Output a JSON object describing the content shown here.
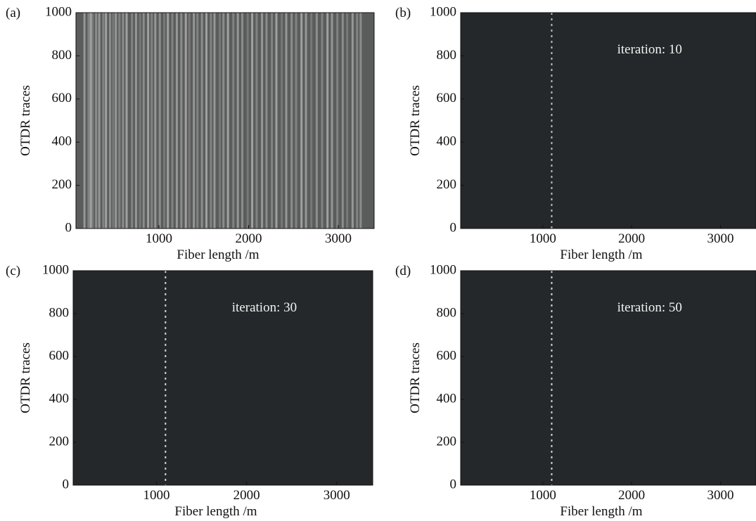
{
  "chart_data": [
    {
      "type": "heatmap",
      "panel_label": "(a)",
      "xlabel": "Fiber length /m",
      "ylabel": "OTDR traces",
      "xlim": [
        75,
        3400
      ],
      "ylim": [
        0,
        1000
      ],
      "xticks": [
        1000,
        2000,
        3000
      ],
      "yticks": [
        0,
        200,
        400,
        600,
        800,
        1000
      ],
      "background": "#5a5c5b",
      "stripe_color": "#ffffff",
      "x": [
        170,
        215,
        240,
        262,
        300,
        335,
        380,
        410,
        455,
        490,
        520,
        560,
        600,
        640,
        700,
        745,
        790,
        830,
        880,
        920,
        960,
        1010,
        1060,
        1100,
        1150,
        1200,
        1250,
        1300,
        1340,
        1390,
        1430,
        1480,
        1530,
        1580,
        1620,
        1680,
        1720,
        1770,
        1830,
        1880,
        1930,
        1990,
        2040,
        2090,
        2150,
        2200,
        2260,
        2310,
        2370,
        2420,
        2480,
        2530,
        2590,
        2640,
        2700,
        2760,
        2820,
        2880,
        2930,
        2990,
        3050,
        3100,
        3160,
        3210,
        3250
      ],
      "values": [
        0.6,
        0.4,
        0.7,
        0.3,
        0.5,
        0.6,
        0.4,
        0.7,
        0.5,
        0.3,
        0.6,
        0.4,
        0.5,
        0.7,
        0.4,
        0.6,
        0.3,
        0.5,
        0.7,
        0.4,
        0.6,
        0.5,
        0.3,
        0.7,
        0.4,
        0.6,
        0.5,
        0.7,
        0.3,
        0.6,
        0.4,
        0.5,
        0.7,
        0.4,
        0.6,
        0.3,
        0.5,
        0.7,
        0.4,
        0.6,
        0.5,
        0.3,
        0.7,
        0.4,
        0.6,
        0.5,
        0.4,
        0.7,
        0.3,
        0.6,
        0.5,
        0.4,
        0.7,
        0.6,
        0.3,
        0.5,
        0.4,
        0.7,
        0.6,
        0.4,
        0.5,
        0.3,
        0.6,
        0.4,
        0.5
      ]
    },
    {
      "type": "heatmap",
      "panel_label": "(b)",
      "xlabel": "Fiber length /m",
      "ylabel": "OTDR traces",
      "annotation": "iteration: 10",
      "xlim": [
        75,
        3400
      ],
      "ylim": [
        0,
        1000
      ],
      "xticks": [
        1000,
        2000,
        3000
      ],
      "yticks": [
        0,
        200,
        400,
        600,
        800,
        1000
      ],
      "background": "#25282a",
      "stripe_color": "#ffffff",
      "x": [
        1100
      ],
      "values": [
        0.7
      ]
    },
    {
      "type": "heatmap",
      "panel_label": "(c)",
      "xlabel": "Fiber length /m",
      "ylabel": "OTDR traces",
      "annotation": "iteration: 30",
      "xlim": [
        75,
        3400
      ],
      "ylim": [
        0,
        1000
      ],
      "xticks": [
        1000,
        2000,
        3000
      ],
      "yticks": [
        0,
        200,
        400,
        600,
        800,
        1000
      ],
      "background": "#25282a",
      "stripe_color": "#ffffff",
      "x": [
        1100
      ],
      "values": [
        0.8
      ]
    },
    {
      "type": "heatmap",
      "panel_label": "(d)",
      "xlabel": "Fiber length /m",
      "ylabel": "OTDR traces",
      "annotation": "iteration: 50",
      "xlim": [
        75,
        3400
      ],
      "ylim": [
        0,
        1000
      ],
      "xticks": [
        1000,
        2000,
        3000
      ],
      "yticks": [
        0,
        200,
        400,
        600,
        800,
        1000
      ],
      "background": "#25282a",
      "stripe_color": "#ffffff",
      "x": [
        1100
      ],
      "values": [
        0.8
      ]
    }
  ]
}
